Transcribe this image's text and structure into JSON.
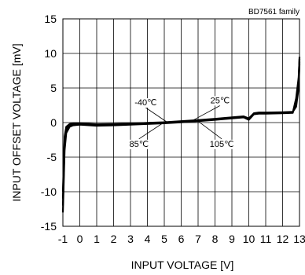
{
  "chart_data": {
    "type": "line",
    "title": "BD7561 family",
    "xlabel": "INPUT VOLTAGE [V]",
    "ylabel": "INPUT OFFSET VOLTAGE [mV]",
    "xlim": [
      -1,
      13
    ],
    "ylim": [
      -15,
      15
    ],
    "xticks": [
      -1,
      0,
      1,
      2,
      3,
      4,
      5,
      6,
      7,
      8,
      9,
      10,
      11,
      12,
      13
    ],
    "yticks": [
      -15,
      -10,
      -5,
      0,
      5,
      10,
      15
    ],
    "grid": true,
    "series": [
      {
        "name": "-40℃",
        "x": [
          -1.0,
          -0.9,
          -0.8,
          -0.6,
          -0.4,
          0,
          1,
          2,
          3,
          4,
          5,
          6,
          7,
          8,
          9,
          9.7,
          10.0,
          10.3,
          10.6,
          11,
          12,
          12.6,
          12.8,
          12.95,
          13.0
        ],
        "y": [
          -13,
          -4,
          -1.5,
          -0.6,
          -0.4,
          -0.3,
          -0.45,
          -0.4,
          -0.3,
          -0.2,
          -0.1,
          0.05,
          0.2,
          0.4,
          0.6,
          0.75,
          0.4,
          1.2,
          1.3,
          1.3,
          1.35,
          1.4,
          3.5,
          6.5,
          9.2
        ]
      },
      {
        "name": "25℃",
        "x": [
          -1.0,
          -0.9,
          -0.8,
          -0.6,
          -0.4,
          0,
          1,
          2,
          3,
          4,
          5,
          6,
          7,
          8,
          9,
          9.7,
          10.0,
          10.3,
          10.6,
          11,
          12,
          12.6,
          12.8,
          12.95,
          13.0
        ],
        "y": [
          -12,
          -3,
          -1.0,
          -0.4,
          -0.3,
          -0.25,
          -0.35,
          -0.3,
          -0.25,
          -0.15,
          -0.05,
          0.1,
          0.25,
          0.45,
          0.65,
          0.8,
          0.5,
          1.25,
          1.35,
          1.35,
          1.4,
          1.45,
          3.0,
          6.0,
          9.5
        ]
      },
      {
        "name": "85℃",
        "x": [
          -1.0,
          -0.9,
          -0.8,
          -0.6,
          -0.4,
          0,
          1,
          2,
          3,
          4,
          5,
          6,
          7,
          8,
          9,
          9.7,
          10.0,
          10.3,
          10.6,
          11,
          12,
          12.6,
          12.8,
          12.95,
          13.0
        ],
        "y": [
          -11,
          -2.5,
          -0.8,
          -0.3,
          -0.2,
          -0.15,
          -0.3,
          -0.25,
          -0.2,
          -0.1,
          0.0,
          0.15,
          0.3,
          0.5,
          0.7,
          0.85,
          0.55,
          1.3,
          1.4,
          1.4,
          1.45,
          1.5,
          2.6,
          5.5,
          8.8
        ]
      },
      {
        "name": "105℃",
        "x": [
          -1.0,
          -0.9,
          -0.8,
          -0.6,
          -0.4,
          0,
          1,
          2,
          3,
          4,
          5,
          6,
          7,
          8,
          9,
          9.7,
          10.0,
          10.3,
          10.6,
          11,
          12,
          12.6,
          12.8,
          12.95,
          13.0
        ],
        "y": [
          -10,
          -2.0,
          -0.6,
          -0.2,
          -0.1,
          -0.1,
          -0.25,
          -0.2,
          -0.15,
          -0.05,
          0.05,
          0.2,
          0.35,
          0.55,
          0.75,
          0.9,
          0.6,
          1.35,
          1.45,
          1.45,
          1.5,
          1.55,
          2.3,
          5.0,
          8.5
        ]
      }
    ],
    "annotations": [
      {
        "text": "-40℃",
        "x": 3.9,
        "y": 2.5,
        "pointer_to": [
          5.2,
          0.0
        ]
      },
      {
        "text": "25℃",
        "x": 8.3,
        "y": 2.8,
        "pointer_to": [
          6.6,
          0.2
        ]
      },
      {
        "text": "85℃",
        "x": 3.5,
        "y": -3.5,
        "pointer_to": [
          4.9,
          -0.1
        ]
      },
      {
        "text": "105℃",
        "x": 8.4,
        "y": -3.5,
        "pointer_to": [
          7.0,
          0.2
        ]
      }
    ]
  }
}
